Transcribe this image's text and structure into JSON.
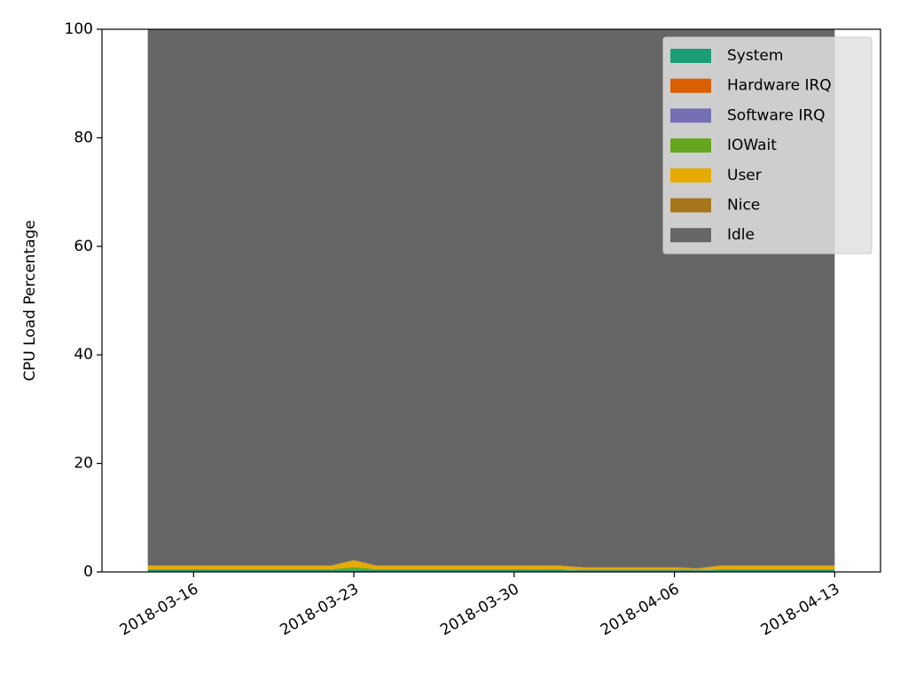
{
  "chart_data": {
    "type": "stacked_area",
    "ylabel": "CPU Load Percentage",
    "x": [
      "2018-03-14",
      "2018-03-15",
      "2018-03-16",
      "2018-03-17",
      "2018-03-18",
      "2018-03-19",
      "2018-03-20",
      "2018-03-21",
      "2018-03-22",
      "2018-03-23",
      "2018-03-24",
      "2018-03-25",
      "2018-03-26",
      "2018-03-27",
      "2018-03-28",
      "2018-03-29",
      "2018-03-30",
      "2018-03-31",
      "2018-04-01",
      "2018-04-02",
      "2018-04-03",
      "2018-04-04",
      "2018-04-05",
      "2018-04-06",
      "2018-04-07",
      "2018-04-08",
      "2018-04-09",
      "2018-04-10",
      "2018-04-11",
      "2018-04-12",
      "2018-04-13"
    ],
    "xlim": [
      "2018-03-12",
      "2018-04-15"
    ],
    "xticks": [
      "2018-03-16",
      "2018-03-23",
      "2018-03-30",
      "2018-04-06",
      "2018-04-13"
    ],
    "ylim": [
      0,
      100
    ],
    "yticks": [
      0,
      20,
      40,
      60,
      80,
      100
    ],
    "legend": "upper right",
    "series": [
      {
        "name": "System",
        "color": "#1b9e77",
        "values": [
          0.35,
          0.35,
          0.35,
          0.35,
          0.35,
          0.35,
          0.35,
          0.35,
          0.35,
          0.35,
          0.35,
          0.35,
          0.35,
          0.35,
          0.35,
          0.35,
          0.35,
          0.35,
          0.35,
          0.25,
          0.25,
          0.25,
          0.25,
          0.25,
          0.25,
          0.35,
          0.35,
          0.35,
          0.35,
          0.35,
          0.35
        ]
      },
      {
        "name": "Hardware IRQ",
        "color": "#d95f02",
        "values": [
          0,
          0,
          0,
          0,
          0,
          0,
          0,
          0,
          0,
          0,
          0,
          0,
          0,
          0,
          0,
          0,
          0,
          0,
          0,
          0,
          0,
          0,
          0,
          0,
          0,
          0,
          0,
          0,
          0,
          0,
          0
        ]
      },
      {
        "name": "Software IRQ",
        "color": "#7570b3",
        "values": [
          0.05,
          0.05,
          0.05,
          0.05,
          0.05,
          0.05,
          0.05,
          0.05,
          0.05,
          0.05,
          0.05,
          0.05,
          0.05,
          0.05,
          0.05,
          0.05,
          0.05,
          0.05,
          0.05,
          0.05,
          0.05,
          0.05,
          0.05,
          0.05,
          0.05,
          0.05,
          0.05,
          0.05,
          0.05,
          0.05,
          0.05
        ]
      },
      {
        "name": "IOWait",
        "color": "#66a61e",
        "values": [
          0.1,
          0.1,
          0.1,
          0.1,
          0.1,
          0.1,
          0.1,
          0.1,
          0.1,
          0.5,
          0.1,
          0.1,
          0.1,
          0.1,
          0.1,
          0.1,
          0.1,
          0.1,
          0.1,
          0.1,
          0.1,
          0.1,
          0.1,
          0.1,
          0.1,
          0.1,
          0.1,
          0.1,
          0.1,
          0.1,
          0.1
        ]
      },
      {
        "name": "User",
        "color": "#e6ab02",
        "values": [
          0.6,
          0.6,
          0.6,
          0.6,
          0.6,
          0.6,
          0.6,
          0.6,
          0.6,
          1.2,
          0.6,
          0.6,
          0.6,
          0.6,
          0.6,
          0.6,
          0.6,
          0.6,
          0.6,
          0.4,
          0.4,
          0.4,
          0.4,
          0.4,
          0.2,
          0.6,
          0.6,
          0.6,
          0.6,
          0.6,
          0.6
        ]
      },
      {
        "name": "Nice",
        "color": "#a6761d",
        "values": [
          0.1,
          0.1,
          0.1,
          0.1,
          0.1,
          0.1,
          0.1,
          0.1,
          0.1,
          0.1,
          0.1,
          0.1,
          0.1,
          0.1,
          0.1,
          0.1,
          0.1,
          0.1,
          0.1,
          0.1,
          0.1,
          0.1,
          0.1,
          0.1,
          0.1,
          0.1,
          0.1,
          0.1,
          0.1,
          0.1,
          0.1
        ]
      },
      {
        "name": "Idle",
        "color": "#666666",
        "values": [
          98.8,
          98.8,
          98.8,
          98.8,
          98.8,
          98.8,
          98.8,
          98.8,
          98.8,
          97.8,
          98.8,
          98.8,
          98.8,
          98.8,
          98.8,
          98.8,
          98.8,
          98.8,
          98.8,
          99.1,
          99.1,
          99.1,
          99.1,
          99.1,
          99.3,
          98.8,
          98.8,
          98.8,
          98.8,
          98.8,
          98.8
        ]
      }
    ]
  }
}
